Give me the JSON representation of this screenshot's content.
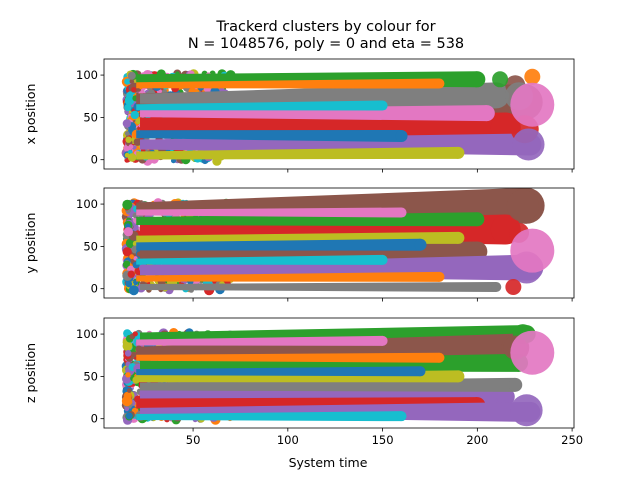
{
  "figure": {
    "title_line1": "Trackerd clusters by colour for",
    "title_line2": "N = 1048576, poly = 0 and eta = 538",
    "xlabel": "System time"
  },
  "palette": [
    "#1f77b4",
    "#ff7f0e",
    "#2ca02c",
    "#d62728",
    "#9467bd",
    "#8c564b",
    "#e377c2",
    "#7f7f7f",
    "#bcbd22",
    "#17becf"
  ],
  "chart_data": [
    {
      "type": "scatter",
      "ylabel": "x position",
      "xlim": [
        3,
        251
      ],
      "ylim": [
        -11,
        119
      ],
      "xticks": [],
      "yticks": [
        0,
        50,
        100
      ],
      "grid": false,
      "streaks": [
        {
          "color": "#8c564b",
          "x": [
            20,
            225
          ],
          "y": [
            70,
            68
          ],
          "w": [
            14,
            36
          ]
        },
        {
          "color": "#d62728",
          "x": [
            22,
            215
          ],
          "y": [
            40,
            38
          ],
          "w": [
            16,
            30
          ]
        },
        {
          "color": "#9467bd",
          "x": [
            22,
            228
          ],
          "y": [
            18,
            18
          ],
          "w": [
            10,
            22
          ]
        },
        {
          "color": "#7f7f7f",
          "x": [
            22,
            210
          ],
          "y": [
            72,
            76
          ],
          "w": [
            10,
            26
          ]
        },
        {
          "color": "#2ca02c",
          "x": [
            20,
            200
          ],
          "y": [
            95,
            95
          ],
          "w": [
            10,
            16
          ]
        },
        {
          "color": "#e377c2",
          "x": [
            22,
            205
          ],
          "y": [
            55,
            55
          ],
          "w": [
            8,
            16
          ]
        },
        {
          "color": "#bcbd22",
          "x": [
            20,
            190
          ],
          "y": [
            5,
            8
          ],
          "w": [
            8,
            12
          ]
        },
        {
          "color": "#1f77b4",
          "x": [
            20,
            160
          ],
          "y": [
            30,
            28
          ],
          "w": [
            8,
            12
          ]
        },
        {
          "color": "#ff7f0e",
          "x": [
            20,
            180
          ],
          "y": [
            88,
            90
          ],
          "w": [
            6,
            10
          ]
        },
        {
          "color": "#17becf",
          "x": [
            20,
            150
          ],
          "y": [
            62,
            64
          ],
          "w": [
            6,
            10
          ]
        }
      ],
      "blobs": [
        {
          "color": "#8c564b",
          "x": 220,
          "y": 88,
          "r": 10
        },
        {
          "color": "#2ca02c",
          "x": 212,
          "y": 95,
          "r": 8
        },
        {
          "color": "#ff7f0e",
          "x": 229,
          "y": 98,
          "r": 8
        },
        {
          "color": "#7f7f7f",
          "x": 222,
          "y": 75,
          "r": 14
        },
        {
          "color": "#d62728",
          "x": 225,
          "y": 36,
          "r": 14
        },
        {
          "color": "#9467bd",
          "x": 227,
          "y": 18,
          "r": 16
        },
        {
          "color": "#e377c2",
          "x": 229,
          "y": 65,
          "r": 22
        }
      ]
    },
    {
      "type": "scatter",
      "ylabel": "y position",
      "xlim": [
        3,
        251
      ],
      "ylim": [
        -11,
        119
      ],
      "xticks": [],
      "yticks": [
        0,
        50,
        100
      ],
      "grid": false,
      "streaks": [
        {
          "color": "#8c564b",
          "x": [
            20,
            226
          ],
          "y": [
            96,
            98
          ],
          "w": [
            10,
            36
          ]
        },
        {
          "color": "#d62728",
          "x": [
            22,
            215
          ],
          "y": [
            68,
            70
          ],
          "w": [
            14,
            30
          ]
        },
        {
          "color": "#8c564b",
          "x": [
            22,
            200
          ],
          "y": [
            42,
            44
          ],
          "w": [
            14,
            20
          ]
        },
        {
          "color": "#9467bd",
          "x": [
            22,
            228
          ],
          "y": [
            22,
            25
          ],
          "w": [
            10,
            26
          ]
        },
        {
          "color": "#2ca02c",
          "x": [
            20,
            200
          ],
          "y": [
            80,
            82
          ],
          "w": [
            8,
            14
          ]
        },
        {
          "color": "#7f7f7f",
          "x": [
            22,
            210
          ],
          "y": [
            2,
            2
          ],
          "w": [
            6,
            10
          ]
        },
        {
          "color": "#bcbd22",
          "x": [
            20,
            190
          ],
          "y": [
            58,
            60
          ],
          "w": [
            8,
            12
          ]
        },
        {
          "color": "#1f77b4",
          "x": [
            20,
            170
          ],
          "y": [
            50,
            52
          ],
          "w": [
            8,
            12
          ]
        },
        {
          "color": "#ff7f0e",
          "x": [
            20,
            180
          ],
          "y": [
            12,
            14
          ],
          "w": [
            6,
            10
          ]
        },
        {
          "color": "#17becf",
          "x": [
            20,
            150
          ],
          "y": [
            32,
            34
          ],
          "w": [
            6,
            10
          ]
        },
        {
          "color": "#e377c2",
          "x": [
            20,
            160
          ],
          "y": [
            90,
            90
          ],
          "w": [
            6,
            10
          ]
        }
      ],
      "blobs": [
        {
          "color": "#8c564b",
          "x": 224,
          "y": 98,
          "r": 16
        },
        {
          "color": "#d62728",
          "x": 222,
          "y": 66,
          "r": 10
        },
        {
          "color": "#9467bd",
          "x": 226,
          "y": 25,
          "r": 16
        },
        {
          "color": "#d62728",
          "x": 219,
          "y": 2,
          "r": 8
        },
        {
          "color": "#e377c2",
          "x": 229,
          "y": 45,
          "r": 22
        }
      ]
    },
    {
      "type": "scatter",
      "ylabel": "z position",
      "xlim": [
        3,
        251
      ],
      "ylim": [
        -11,
        119
      ],
      "xticks": [
        50,
        100,
        150,
        200,
        250
      ],
      "yticks": [
        0,
        50,
        100
      ],
      "grid": false,
      "streaks": [
        {
          "color": "#2ca02c",
          "x": [
            22,
            226
          ],
          "y": [
            96,
            100
          ],
          "w": [
            10,
            18
          ]
        },
        {
          "color": "#8c564b",
          "x": [
            20,
            220
          ],
          "y": [
            78,
            84
          ],
          "w": [
            12,
            28
          ]
        },
        {
          "color": "#2ca02c",
          "x": [
            22,
            222
          ],
          "y": [
            62,
            66
          ],
          "w": [
            10,
            18
          ]
        },
        {
          "color": "#9467bd",
          "x": [
            22,
            215
          ],
          "y": [
            28,
            26
          ],
          "w": [
            10,
            18
          ]
        },
        {
          "color": "#d62728",
          "x": [
            20,
            200
          ],
          "y": [
            18,
            16
          ],
          "w": [
            10,
            16
          ]
        },
        {
          "color": "#7f7f7f",
          "x": [
            22,
            220
          ],
          "y": [
            38,
            40
          ],
          "w": [
            8,
            14
          ]
        },
        {
          "color": "#9467bd",
          "x": [
            22,
            228
          ],
          "y": [
            8,
            8
          ],
          "w": [
            8,
            20
          ]
        },
        {
          "color": "#bcbd22",
          "x": [
            20,
            190
          ],
          "y": [
            48,
            50
          ],
          "w": [
            8,
            12
          ]
        },
        {
          "color": "#1f77b4",
          "x": [
            20,
            170
          ],
          "y": [
            55,
            56
          ],
          "w": [
            6,
            10
          ]
        },
        {
          "color": "#ff7f0e",
          "x": [
            20,
            180
          ],
          "y": [
            72,
            72
          ],
          "w": [
            6,
            10
          ]
        },
        {
          "color": "#e377c2",
          "x": [
            20,
            150
          ],
          "y": [
            90,
            92
          ],
          "w": [
            6,
            10
          ]
        },
        {
          "color": "#17becf",
          "x": [
            20,
            160
          ],
          "y": [
            2,
            3
          ],
          "w": [
            6,
            10
          ]
        }
      ],
      "blobs": [
        {
          "color": "#2ca02c",
          "x": 224,
          "y": 100,
          "r": 10
        },
        {
          "color": "#8c564b",
          "x": 220,
          "y": 84,
          "r": 12
        },
        {
          "color": "#9467bd",
          "x": 226,
          "y": 10,
          "r": 16
        },
        {
          "color": "#e377c2",
          "x": 229,
          "y": 78,
          "r": 22
        }
      ]
    }
  ]
}
